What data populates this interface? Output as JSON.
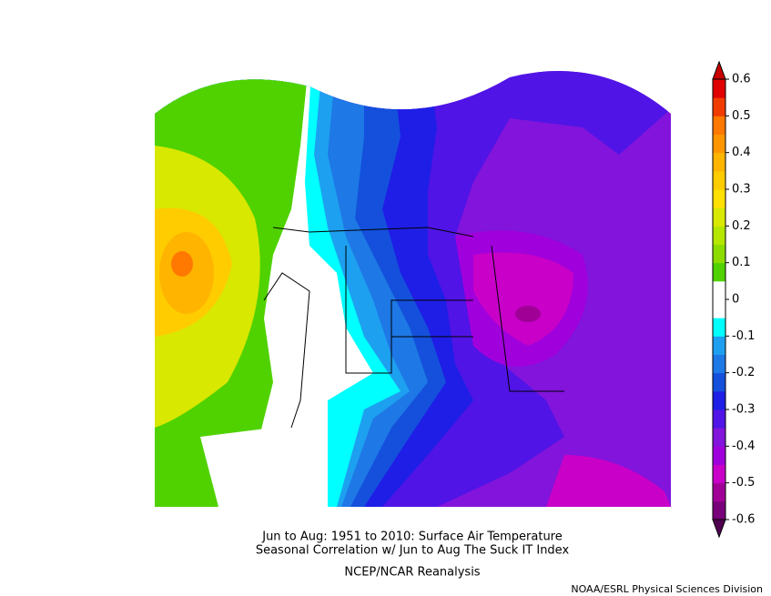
{
  "chart_data": {
    "type": "contour",
    "title": "Jun to Aug: 1951 to 2010: Surface Air Temperature",
    "subtitle": "Seasonal Correlation w/ Jun to Aug The Suck IT Index",
    "source": "NCEP/NCAR Reanalysis",
    "credit": "NOAA/ESRL Physical Sciences Division",
    "clim": [
      -0.6,
      0.6
    ],
    "cticks": [
      0.6,
      0.5,
      0.4,
      0.3,
      0.2,
      0.1,
      0,
      -0.1,
      -0.2,
      -0.3,
      -0.4,
      -0.5,
      -0.6
    ],
    "colors": [
      "#780078",
      "#a00096",
      "#c800c8",
      "#a000dc",
      "#8214dc",
      "#5014e6",
      "#1e1ee6",
      "#1450dc",
      "#1e78e6",
      "#1ea0f0",
      "#00ffff",
      "#ffffff",
      "#ffffff",
      "#50d200",
      "#8cdc00",
      "#b4e600",
      "#d8e800",
      "#ffe000",
      "#ffcc00",
      "#ffb400",
      "#ff9600",
      "#ff7800",
      "#f03c00",
      "#e00000"
    ],
    "extend_colors": [
      "#500050",
      "#c80000"
    ]
  }
}
